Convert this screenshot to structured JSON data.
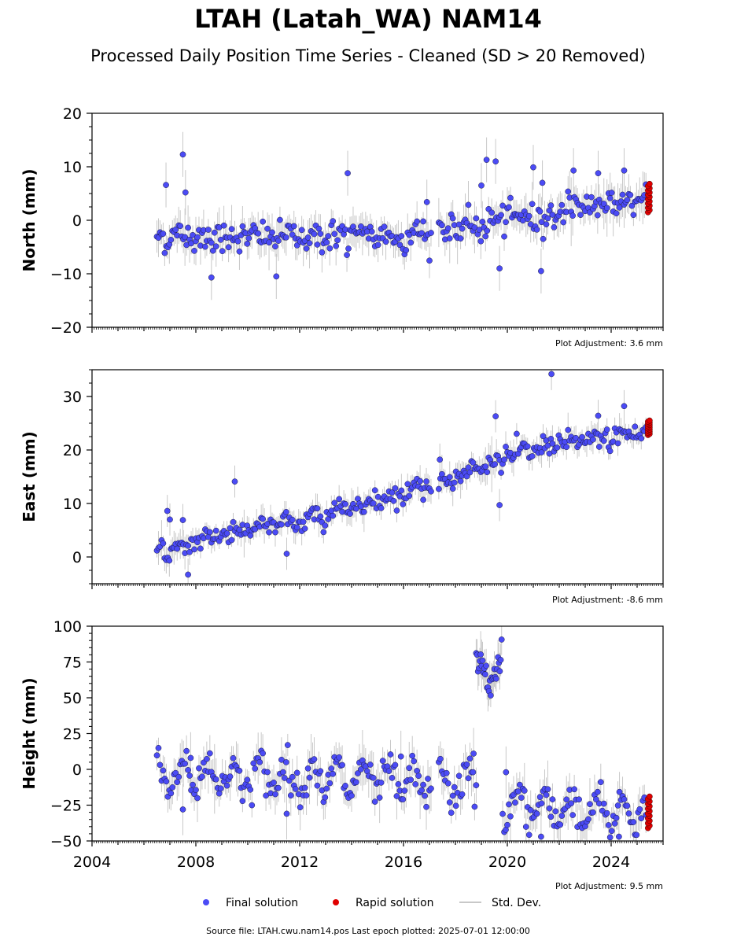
{
  "title": "LTAH (Latah_WA) NAM14",
  "subtitle": "Processed Daily Position Time Series - Cleaned (SD > 20 Removed)",
  "source_text": "Source file: LTAH.cwu.nam14.pos  Last epoch plotted: 2025-07-01 12:00:00",
  "legend": [
    {
      "label": "Final solution",
      "color": "#4b4bf5",
      "kind": "marker"
    },
    {
      "label": "Rapid solution",
      "color": "#e00000",
      "kind": "marker"
    },
    {
      "label": "Std. Dev.",
      "color": "#c8c8c8",
      "kind": "line"
    }
  ],
  "chart_data": [
    {
      "type": "scatter",
      "id": "north",
      "ylabel": "North (mm)",
      "ylim": [
        -20,
        20
      ],
      "yticks": [
        -20,
        -10,
        0,
        10,
        20
      ],
      "ytick_labels": [
        "−20",
        "−10",
        "0",
        "10",
        "20"
      ],
      "xlim": [
        2004,
        2026
      ],
      "xtick_labels": [],
      "adjustment": "Plot Adjustment: 3.6 mm",
      "final_start": 2006.5,
      "final_end": 2025.35,
      "rapid": {
        "x": [
          2025.35,
          2025.55
        ],
        "y": [
          1.5,
          6.8
        ]
      },
      "gaps": [
        [
          2017.1,
          2017.35
        ]
      ],
      "trend": [
        [
          2006.5,
          -3.0
        ],
        [
          2012.0,
          -3.0
        ],
        [
          2016.0,
          -3.0
        ],
        [
          2017.4,
          -2.0
        ],
        [
          2019.0,
          -1.0
        ],
        [
          2020.5,
          1.0
        ],
        [
          2021.6,
          0.0
        ],
        [
          2022.1,
          2.5
        ],
        [
          2023.5,
          3.0
        ],
        [
          2025.3,
          3.8
        ]
      ],
      "noise": 1.4,
      "annual_amp": 0.4,
      "outliers": [
        [
          2006.85,
          6.6
        ],
        [
          2007.5,
          12.3
        ],
        [
          2007.6,
          5.2
        ],
        [
          2008.6,
          -10.7
        ],
        [
          2011.1,
          -10.5
        ],
        [
          2013.85,
          8.8
        ],
        [
          2019.2,
          11.3
        ],
        [
          2019.55,
          11.0
        ],
        [
          2019.0,
          6.5
        ],
        [
          2019.7,
          -9.0
        ],
        [
          2021.0,
          9.9
        ],
        [
          2021.35,
          7.0
        ],
        [
          2021.3,
          -9.5
        ],
        [
          2022.55,
          9.3
        ],
        [
          2023.5,
          8.8
        ],
        [
          2024.5,
          9.3
        ],
        [
          2016.9,
          3.4
        ]
      ]
    },
    {
      "type": "scatter",
      "id": "east",
      "ylabel": "East (mm)",
      "ylim": [
        -5,
        35
      ],
      "yticks": [
        0,
        10,
        20,
        30
      ],
      "ytick_labels": [
        "0",
        "10",
        "20",
        "30"
      ],
      "xlim": [
        2004,
        2026
      ],
      "xtick_labels": [],
      "adjustment": "Plot Adjustment: -8.6 mm",
      "final_start": 2006.5,
      "final_end": 2025.35,
      "rapid": {
        "x": [
          2025.35,
          2025.55
        ],
        "y": [
          22.8,
          25.5
        ]
      },
      "gaps": [
        [
          2017.1,
          2017.35
        ]
      ],
      "trend": [
        [
          2006.5,
          0.5
        ],
        [
          2008.0,
          3.0
        ],
        [
          2010.0,
          5.5
        ],
        [
          2012.0,
          6.5
        ],
        [
          2014.0,
          9.5
        ],
        [
          2016.0,
          12.0
        ],
        [
          2017.0,
          13.5
        ],
        [
          2018.5,
          16.0
        ],
        [
          2019.5,
          17.5
        ],
        [
          2020.0,
          19.0
        ],
        [
          2022.0,
          21.0
        ],
        [
          2025.3,
          23.5
        ]
      ],
      "noise": 1.0,
      "annual_amp": 0.6,
      "outliers": [
        [
          2006.9,
          8.6
        ],
        [
          2007.0,
          7.0
        ],
        [
          2007.5,
          6.9
        ],
        [
          2009.5,
          14.1
        ],
        [
          2011.5,
          0.6
        ],
        [
          2007.7,
          -3.3
        ],
        [
          2021.7,
          34.2
        ],
        [
          2019.55,
          26.3
        ],
        [
          2019.7,
          9.7
        ],
        [
          2024.5,
          28.2
        ],
        [
          2023.5,
          26.4
        ],
        [
          2017.4,
          18.2
        ]
      ]
    },
    {
      "type": "scatter",
      "id": "height",
      "ylabel": "Height (mm)",
      "ylim": [
        -50,
        100
      ],
      "yticks": [
        -50,
        -25,
        0,
        25,
        50,
        75,
        100
      ],
      "ytick_labels": [
        "−50",
        "−25",
        "0",
        "25",
        "50",
        "75",
        "100"
      ],
      "xlim": [
        2004,
        2026
      ],
      "xtick_labels": [
        "2004",
        "2008",
        "2012",
        "2016",
        "2020",
        "2024"
      ],
      "xtick_values": [
        2004,
        2008,
        2012,
        2016,
        2020,
        2024
      ],
      "adjustment": "Plot Adjustment: 9.5 mm",
      "final_start": 2006.5,
      "final_end": 2025.35,
      "rapid": {
        "x": [
          2025.35,
          2025.55
        ],
        "y": [
          -41.0,
          -19.0
        ]
      },
      "gaps": [
        [
          2017.1,
          2017.35
        ],
        [
          2018.8,
          2019.8
        ]
      ],
      "trend": [
        [
          2006.5,
          -3.0
        ],
        [
          2010.0,
          -5.0
        ],
        [
          2014.0,
          -7.0
        ],
        [
          2017.0,
          -10.0
        ],
        [
          2018.8,
          -12.0
        ],
        [
          2019.8,
          -25.0
        ],
        [
          2022.0,
          -27.0
        ],
        [
          2025.3,
          -30.0
        ]
      ],
      "noise": 6.0,
      "annual_amp": 10.0,
      "offset_segment": {
        "x0": 2018.8,
        "x1": 2019.8,
        "y_edges": 85,
        "y_mid": 60
      },
      "outliers": [
        [
          2007.5,
          -28.0
        ],
        [
          2007.8,
          8.0
        ],
        [
          2018.7,
          11.0
        ],
        [
          2019.95,
          -2.0
        ],
        [
          2021.3,
          -47.0
        ],
        [
          2024.3,
          -47.0
        ],
        [
          2011.5,
          -31.0
        ],
        [
          2015.9,
          9.0
        ]
      ]
    }
  ]
}
